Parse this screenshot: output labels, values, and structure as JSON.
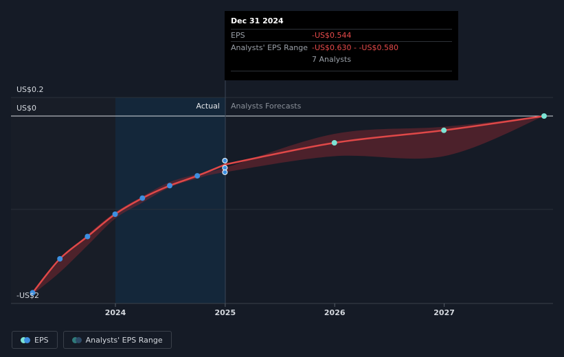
{
  "tooltip": {
    "date": "Dec 31 2024",
    "eps_label": "EPS",
    "eps_value": "-US$0.544",
    "range_label": "Analysts' EPS Range",
    "range_value": "-US$0.630 - -US$0.580",
    "analysts": "7 Analysts"
  },
  "section_labels": {
    "actual": "Actual",
    "forecast": "Analysts Forecasts"
  },
  "y_axis_labels": [
    "US$0.2",
    "US$0",
    "-US$2"
  ],
  "legend": {
    "eps": "EPS",
    "range": "Analysts' EPS Range"
  },
  "colors": {
    "background": "#151b26",
    "eps_line": "#e04848",
    "range_band": "#7a2630",
    "actual_point": "#3d8fe0",
    "forecast_point": "#7de3d4",
    "highlight": "#14324a"
  },
  "chart_data": {
    "type": "line",
    "title": "",
    "xlabel": "",
    "ylabel": "",
    "x_ticks": [
      "2024",
      "2025",
      "2026",
      "2027"
    ],
    "ylim": [
      -2,
      0.2
    ],
    "grid": true,
    "legend_placement": "bottom-left",
    "series": [
      {
        "name": "EPS",
        "points": [
          {
            "date": "2023-03-31",
            "value": -1.98
          },
          {
            "date": "2023-06-30",
            "value": -1.6
          },
          {
            "date": "2023-09-30",
            "value": -1.35
          },
          {
            "date": "2023-12-31",
            "value": -1.1
          },
          {
            "date": "2024-03-31",
            "value": -0.92
          },
          {
            "date": "2024-06-30",
            "value": -0.78
          },
          {
            "date": "2024-09-30",
            "value": -0.67
          },
          {
            "date": "2024-12-31",
            "value": -0.544
          }
        ]
      },
      {
        "name": "EPS forecast",
        "points": [
          {
            "date": "2024-12-31",
            "value": -0.544
          },
          {
            "date": "2025-12-31",
            "value": -0.3
          },
          {
            "date": "2026-12-31",
            "value": -0.16
          },
          {
            "date": "2027-11-30",
            "value": 0.0
          }
        ]
      }
    ],
    "actual_markers": [
      -0.5,
      -0.58,
      -0.63
    ],
    "range": [
      {
        "date": "2023-03-31",
        "low": -2.0,
        "high": -1.98
      },
      {
        "date": "2023-06-30",
        "low": -1.75,
        "high": -1.62
      },
      {
        "date": "2023-09-30",
        "low": -1.45,
        "high": -1.33
      },
      {
        "date": "2023-12-31",
        "low": -1.15,
        "high": -1.08
      },
      {
        "date": "2024-03-31",
        "low": -0.97,
        "high": -0.9
      },
      {
        "date": "2024-06-30",
        "low": -0.8,
        "high": -0.74
      },
      {
        "date": "2024-09-30",
        "low": -0.7,
        "high": -0.65
      },
      {
        "date": "2024-12-31",
        "low": -0.63,
        "high": -0.58
      },
      {
        "date": "2025-12-31",
        "low": -0.45,
        "high": -0.2
      },
      {
        "date": "2026-12-31",
        "low": -0.45,
        "high": -0.12
      },
      {
        "date": "2027-11-30",
        "low": 0.0,
        "high": 0.0
      }
    ]
  }
}
